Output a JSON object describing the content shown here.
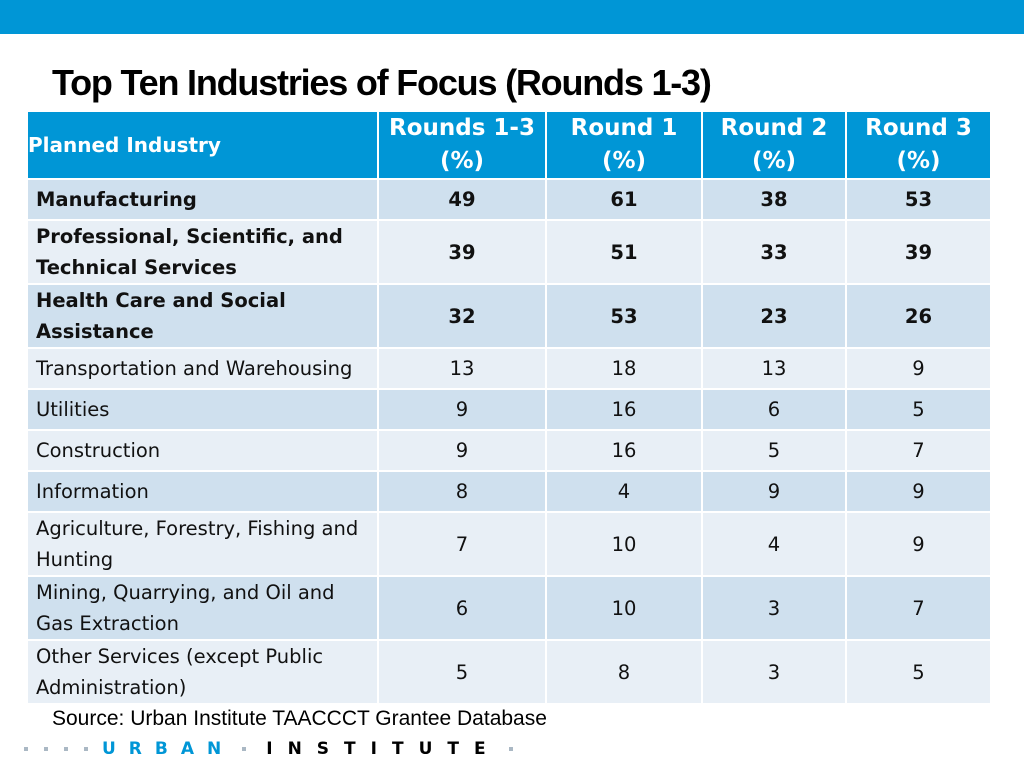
{
  "title": "Top Ten Industries of Focus (Rounds 1-3)",
  "table": {
    "headers": {
      "industry": "Planned Industry",
      "cols": [
        {
          "line1": "Rounds 1-3",
          "line2": "(%)"
        },
        {
          "line1": "Round 1",
          "line2": "(%)"
        },
        {
          "line1": "Round 2",
          "line2": "(%)"
        },
        {
          "line1": "Round 3",
          "line2": "(%)"
        }
      ]
    },
    "rows": [
      {
        "industry": "Manufacturing",
        "values": [
          "49",
          "61",
          "38",
          "53"
        ]
      },
      {
        "industry": "Professional, Scientific, and Technical Services",
        "values": [
          "39",
          "51",
          "33",
          "39"
        ]
      },
      {
        "industry": "Health Care and Social Assistance",
        "values": [
          "32",
          "53",
          "23",
          "26"
        ]
      },
      {
        "industry": "Transportation and Warehousing",
        "values": [
          "13",
          "18",
          "13",
          "9"
        ]
      },
      {
        "industry": "Utilities",
        "values": [
          "9",
          "16",
          "6",
          "5"
        ]
      },
      {
        "industry": "Construction",
        "values": [
          "9",
          "16",
          "5",
          "7"
        ]
      },
      {
        "industry": "Information",
        "values": [
          "8",
          "4",
          "9",
          "9"
        ]
      },
      {
        "industry": "Agriculture, Forestry, Fishing and Hunting",
        "values": [
          "7",
          "10",
          "4",
          "9"
        ]
      },
      {
        "industry": "Mining, Quarrying, and Oil and Gas Extraction",
        "values": [
          "6",
          "10",
          "3",
          "7"
        ]
      },
      {
        "industry": "Other Services (except Public Administration)",
        "values": [
          "5",
          "8",
          "3",
          "5"
        ]
      }
    ]
  },
  "source": "Source: Urban Institute TAACCCT Grantee Database",
  "logo": {
    "word1": "URBAN",
    "word2": "INSTITUTE"
  },
  "colors": {
    "accent": "#0096d6",
    "row_odd": "#cfe0ee",
    "row_even": "#e8eff6"
  }
}
